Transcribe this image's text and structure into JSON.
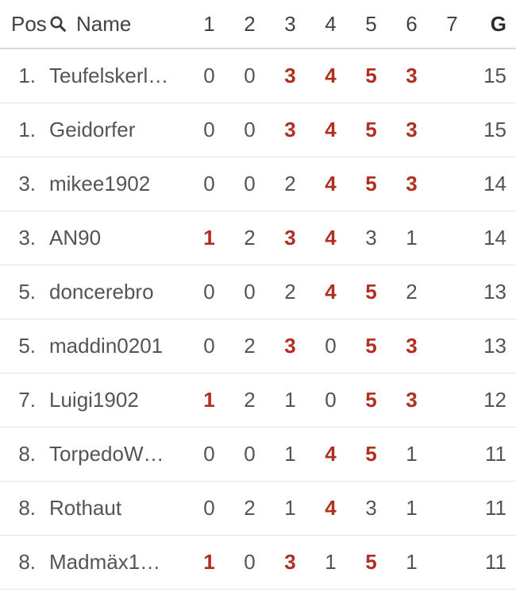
{
  "colors": {
    "hot_red": "#b02f1e",
    "header_text": "#424242",
    "row_text": "#545454",
    "divider": "#e5e5e5"
  },
  "header": {
    "pos": "Pos",
    "name": "Name",
    "rounds": [
      "1",
      "2",
      "3",
      "4",
      "5",
      "6",
      "7"
    ],
    "total": "G"
  },
  "rows": [
    {
      "pos": "1.",
      "name": "Teufelskerl…",
      "cells": [
        {
          "v": "0",
          "hot": false
        },
        {
          "v": "0",
          "hot": false
        },
        {
          "v": "3",
          "hot": true
        },
        {
          "v": "4",
          "hot": true
        },
        {
          "v": "5",
          "hot": true
        },
        {
          "v": "3",
          "hot": true
        },
        {
          "v": "",
          "hot": false
        }
      ],
      "total": "15"
    },
    {
      "pos": "1.",
      "name": "Geidorfer",
      "cells": [
        {
          "v": "0",
          "hot": false
        },
        {
          "v": "0",
          "hot": false
        },
        {
          "v": "3",
          "hot": true
        },
        {
          "v": "4",
          "hot": true
        },
        {
          "v": "5",
          "hot": true
        },
        {
          "v": "3",
          "hot": true
        },
        {
          "v": "",
          "hot": false
        }
      ],
      "total": "15"
    },
    {
      "pos": "3.",
      "name": "mikee1902",
      "cells": [
        {
          "v": "0",
          "hot": false
        },
        {
          "v": "0",
          "hot": false
        },
        {
          "v": "2",
          "hot": false
        },
        {
          "v": "4",
          "hot": true
        },
        {
          "v": "5",
          "hot": true
        },
        {
          "v": "3",
          "hot": true
        },
        {
          "v": "",
          "hot": false
        }
      ],
      "total": "14"
    },
    {
      "pos": "3.",
      "name": "AN90",
      "cells": [
        {
          "v": "1",
          "hot": true
        },
        {
          "v": "2",
          "hot": false
        },
        {
          "v": "3",
          "hot": true
        },
        {
          "v": "4",
          "hot": true
        },
        {
          "v": "3",
          "hot": false
        },
        {
          "v": "1",
          "hot": false
        },
        {
          "v": "",
          "hot": false
        }
      ],
      "total": "14"
    },
    {
      "pos": "5.",
      "name": "doncerebro",
      "cells": [
        {
          "v": "0",
          "hot": false
        },
        {
          "v": "0",
          "hot": false
        },
        {
          "v": "2",
          "hot": false
        },
        {
          "v": "4",
          "hot": true
        },
        {
          "v": "5",
          "hot": true
        },
        {
          "v": "2",
          "hot": false
        },
        {
          "v": "",
          "hot": false
        }
      ],
      "total": "13"
    },
    {
      "pos": "5.",
      "name": "maddin0201",
      "cells": [
        {
          "v": "0",
          "hot": false
        },
        {
          "v": "2",
          "hot": false
        },
        {
          "v": "3",
          "hot": true
        },
        {
          "v": "0",
          "hot": false
        },
        {
          "v": "5",
          "hot": true
        },
        {
          "v": "3",
          "hot": true
        },
        {
          "v": "",
          "hot": false
        }
      ],
      "total": "13"
    },
    {
      "pos": "7.",
      "name": "Luigi1902",
      "cells": [
        {
          "v": "1",
          "hot": true
        },
        {
          "v": "2",
          "hot": false
        },
        {
          "v": "1",
          "hot": false
        },
        {
          "v": "0",
          "hot": false
        },
        {
          "v": "5",
          "hot": true
        },
        {
          "v": "3",
          "hot": true
        },
        {
          "v": "",
          "hot": false
        }
      ],
      "total": "12"
    },
    {
      "pos": "8.",
      "name": "TorpedoW…",
      "cells": [
        {
          "v": "0",
          "hot": false
        },
        {
          "v": "0",
          "hot": false
        },
        {
          "v": "1",
          "hot": false
        },
        {
          "v": "4",
          "hot": true
        },
        {
          "v": "5",
          "hot": true
        },
        {
          "v": "1",
          "hot": false
        },
        {
          "v": "",
          "hot": false
        }
      ],
      "total": "11"
    },
    {
      "pos": "8.",
      "name": "Rothaut",
      "cells": [
        {
          "v": "0",
          "hot": false
        },
        {
          "v": "2",
          "hot": false
        },
        {
          "v": "1",
          "hot": false
        },
        {
          "v": "4",
          "hot": true
        },
        {
          "v": "3",
          "hot": false
        },
        {
          "v": "1",
          "hot": false
        },
        {
          "v": "",
          "hot": false
        }
      ],
      "total": "11"
    },
    {
      "pos": "8.",
      "name": "Madmäx1…",
      "cells": [
        {
          "v": "1",
          "hot": true
        },
        {
          "v": "0",
          "hot": false
        },
        {
          "v": "3",
          "hot": true
        },
        {
          "v": "1",
          "hot": false
        },
        {
          "v": "5",
          "hot": true
        },
        {
          "v": "1",
          "hot": false
        },
        {
          "v": "",
          "hot": false
        }
      ],
      "total": "11"
    }
  ]
}
